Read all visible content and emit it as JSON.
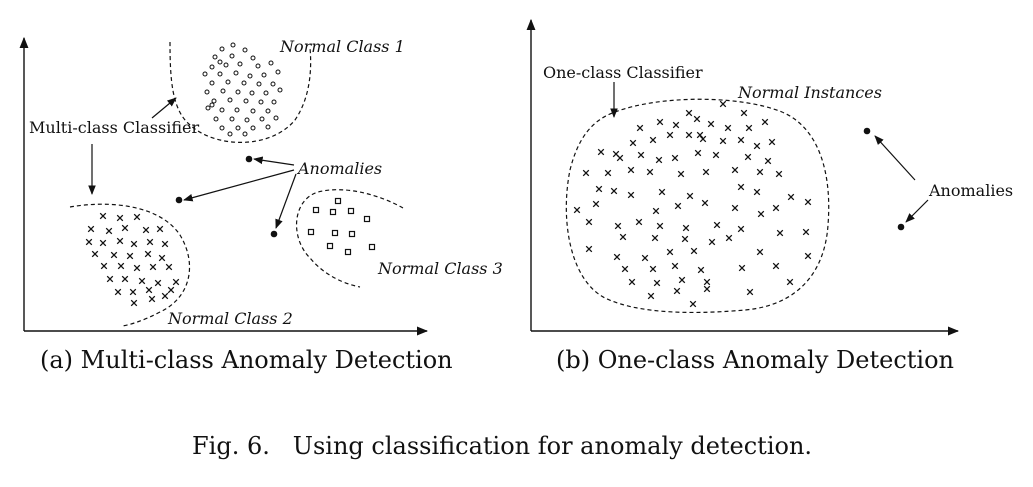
{
  "panel_a": {
    "caption": "(a) Multi-class Anomaly Detection",
    "labels": {
      "normal_class_1": "Normal Class 1",
      "normal_class_2": "Normal Class 2",
      "normal_class_3": "Normal Class 3",
      "anomalies": "Anomalies",
      "classifier": "Multi-class Classifier"
    }
  },
  "panel_b": {
    "caption": "(b) One-class Anomaly Detection",
    "labels": {
      "normal_instances": "Normal Instances",
      "anomalies": "Anomalies",
      "classifier": "One-class Classifier"
    }
  },
  "figure_caption": "Fig. 6.   Using classification for anomaly detection."
}
